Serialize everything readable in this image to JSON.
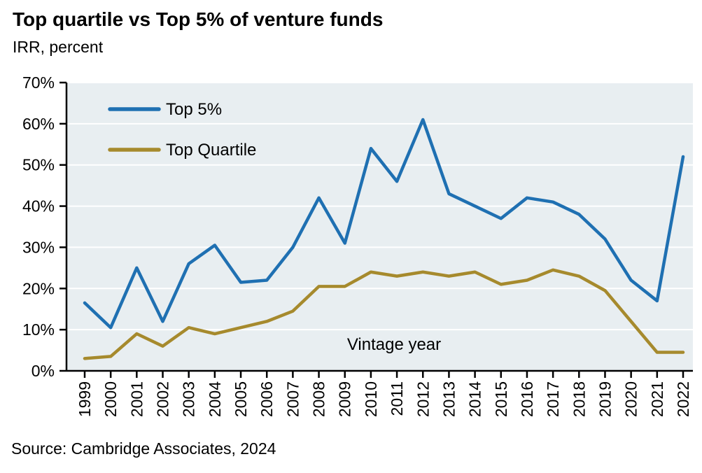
{
  "header": {
    "title": "Top quartile vs Top 5% of venture funds",
    "subtitle": "IRR, percent"
  },
  "footer": {
    "source": "Source: Cambridge Associates, 2024"
  },
  "chart_data": {
    "type": "line",
    "title": "Top quartile vs Top 5% of venture funds",
    "subtitle": "IRR, percent",
    "xlabel": "Vintage year",
    "ylabel": "IRR, percent",
    "ylim": [
      0,
      70
    ],
    "ytick_step": 10,
    "ytick_labels": [
      "0%",
      "10%",
      "20%",
      "30%",
      "40%",
      "50%",
      "60%",
      "70%"
    ],
    "grid": true,
    "legend_position": "top-left-inside",
    "categories": [
      "1999",
      "2000",
      "2001",
      "2002",
      "2003",
      "2004",
      "2005",
      "2006",
      "2007",
      "2008",
      "2009",
      "2010",
      "2011",
      "2012",
      "2013",
      "2014",
      "2015",
      "2016",
      "2017",
      "2018",
      "2019",
      "2020",
      "2021",
      "2022"
    ],
    "series": [
      {
        "name": "Top 5%",
        "color": "#1F70B2",
        "values": [
          16.5,
          10.5,
          25,
          12,
          26,
          30.5,
          21.5,
          22,
          30,
          42,
          31,
          54,
          46,
          61,
          43,
          40,
          37,
          42,
          41,
          38,
          32,
          22,
          17,
          52
        ]
      },
      {
        "name": "Top Quartile",
        "color": "#A68A2D",
        "values": [
          3,
          3.5,
          9,
          6,
          10.5,
          9,
          10.5,
          12,
          14.5,
          20.5,
          20.5,
          24,
          23,
          24,
          23,
          24,
          21,
          22,
          24.5,
          23,
          19.5,
          12,
          4.5,
          4.5
        ]
      }
    ],
    "annotation": "Vintage year",
    "colors": {
      "plot_bg": "#E8EEF1",
      "gridline": "#FFFFFF",
      "axis": "#000000"
    }
  }
}
